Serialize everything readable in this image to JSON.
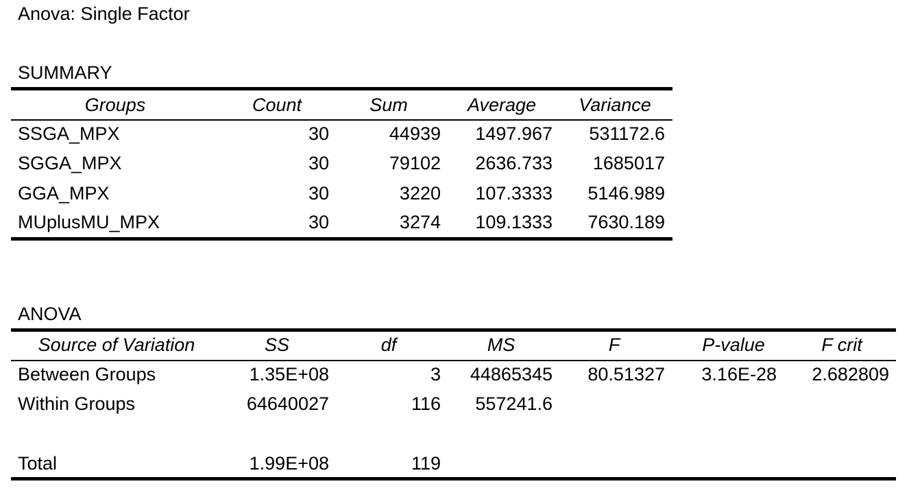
{
  "title": "Anova: Single Factor",
  "summary": {
    "label": "SUMMARY",
    "header": [
      "Groups",
      "Count",
      "Sum",
      "Average",
      "Variance"
    ],
    "rows": [
      [
        "SSGA_MPX",
        "30",
        "44939",
        "1497.967",
        "531172.6"
      ],
      [
        "SGGA_MPX",
        "30",
        "79102",
        "2636.733",
        "1685017"
      ],
      [
        "GGA_MPX",
        "30",
        "3220",
        "107.3333",
        "5146.989"
      ],
      [
        "MUplusMU_MPX",
        "30",
        "3274",
        "109.1333",
        "7630.189"
      ]
    ]
  },
  "anova": {
    "label": "ANOVA",
    "header": [
      "Source of Variation",
      "SS",
      "df",
      "MS",
      "F",
      "P-value",
      "F crit"
    ],
    "rows": [
      [
        "Between Groups",
        "1.35E+08",
        "3",
        "44865345",
        "80.51327",
        "3.16E-28",
        "2.682809"
      ],
      [
        "Within Groups",
        "64640027",
        "116",
        "557241.6"
      ],
      [
        "Total",
        "1.99E+08",
        "119"
      ]
    ]
  }
}
